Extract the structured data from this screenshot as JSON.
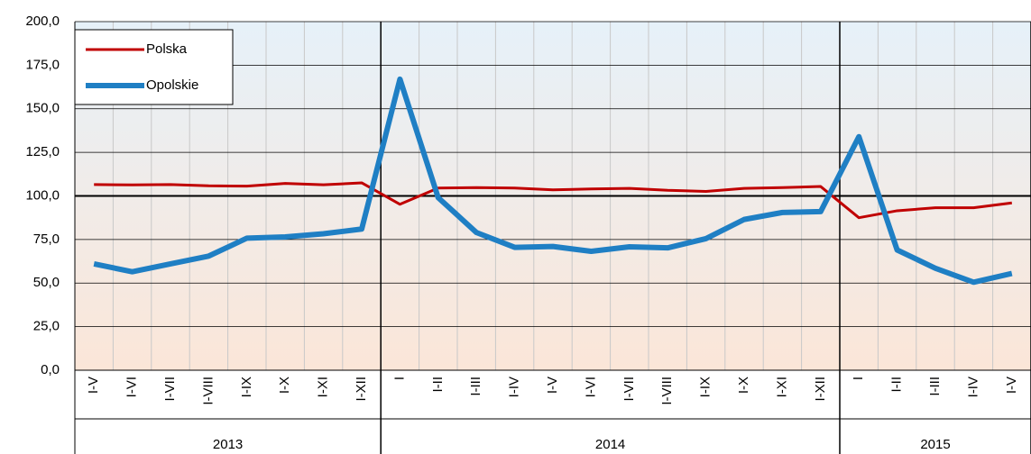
{
  "chart_data": {
    "type": "line",
    "categories": [
      "I-V",
      "I-VI",
      "I-VII",
      "I-VIII",
      "I-IX",
      "I-X",
      "I-XI",
      "I-XII",
      "I",
      "I-II",
      "I-III",
      "I-IV",
      "I-V",
      "I-VI",
      "I-VII",
      "I-VIII",
      "I-IX",
      "I-X",
      "I-XI",
      "I-XII",
      "I",
      "I-II",
      "I-III",
      "I-IV",
      "I-V"
    ],
    "groups": [
      {
        "name": "2013",
        "size": 8
      },
      {
        "name": "2014",
        "size": 12
      },
      {
        "name": "2015",
        "size": 5
      }
    ],
    "series": [
      {
        "name": "Polska",
        "color": "#c00000",
        "width": 3,
        "values": [
          106.5,
          106.3,
          106.5,
          105.8,
          105.6,
          107.2,
          106.4,
          107.5,
          95.2,
          104.5,
          104.8,
          104.5,
          103.5,
          104,
          104.3,
          103.2,
          102.6,
          104.3,
          104.8,
          105.4,
          87.5,
          91.5,
          93.2,
          93.2,
          96
        ]
      },
      {
        "name": "Opolskie",
        "color": "#1f7fc4",
        "width": 6,
        "values": [
          61,
          56.5,
          61,
          65.5,
          75.8,
          76.5,
          78.3,
          81,
          167,
          99,
          79,
          70.5,
          71,
          68.2,
          70.8,
          70.2,
          75.5,
          86.5,
          90.5,
          91,
          134,
          69,
          58.5,
          50.5,
          55.5
        ]
      }
    ],
    "ylim": [
      0,
      200
    ],
    "yticks": [
      {
        "value": 0,
        "label": "0,0"
      },
      {
        "value": 25,
        "label": "25,0"
      },
      {
        "value": 50,
        "label": "50,0"
      },
      {
        "value": 75,
        "label": "75,0"
      },
      {
        "value": 100,
        "label": "100,0"
      },
      {
        "value": 125,
        "label": "125,0"
      },
      {
        "value": 150,
        "label": "150,0"
      },
      {
        "value": 175,
        "label": "175,0"
      },
      {
        "value": 200,
        "label": "200,0"
      }
    ],
    "reference_line": 100,
    "grid": true,
    "legend": "top-left"
  }
}
